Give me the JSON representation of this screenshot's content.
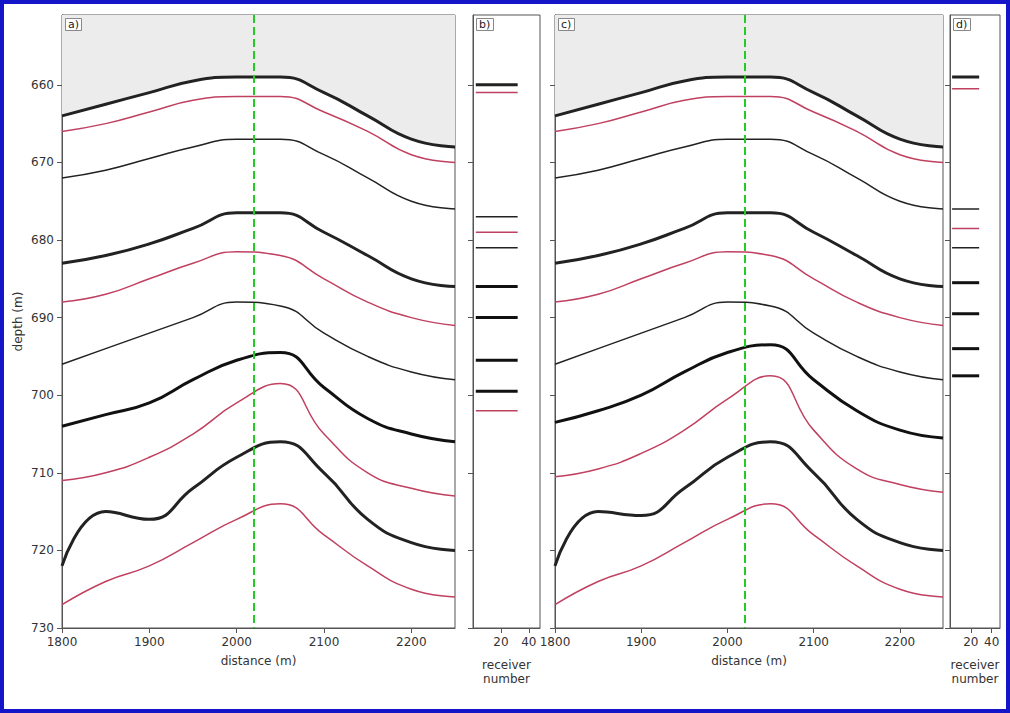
{
  "chart_data": [
    {
      "type": "line",
      "title": "a)",
      "xlabel": "distance (m)",
      "ylabel": "depth (m)",
      "xlim": [
        1800,
        2250
      ],
      "xticks": [
        1800,
        1900,
        2000,
        2100,
        2200
      ],
      "ylim": [
        651,
        730
      ],
      "yticks": [
        660,
        670,
        680,
        690,
        700,
        710,
        720,
        730
      ],
      "grid": false,
      "annotations": [
        {
          "x": 2020,
          "color": "#22cc22",
          "line_style": "dashed"
        }
      ],
      "x": [
        1800,
        1850,
        1900,
        1950,
        2000,
        2050,
        2100,
        2150,
        2200,
        2250
      ],
      "series": [
        {
          "type": "area",
          "color": "#222222",
          "line_style": "bold",
          "values": [
            664,
            662.5,
            661,
            659.5,
            659,
            659,
            661,
            664,
            667,
            668
          ]
        },
        {
          "color": "#c04060",
          "line_style": "solid",
          "values": [
            666,
            665,
            663.5,
            662,
            661.5,
            661.5,
            663.5,
            666,
            669,
            670
          ]
        },
        {
          "color": "#222222",
          "line_style": "solid",
          "values": [
            672,
            671,
            669.5,
            668,
            667,
            667,
            669,
            672,
            675,
            676
          ]
        },
        {
          "color": "#222222",
          "line_style": "bold",
          "values": [
            683,
            682,
            680.5,
            678.5,
            676.5,
            676.5,
            679,
            682,
            685,
            686
          ]
        },
        {
          "color": "#c04060",
          "line_style": "solid",
          "values": [
            688,
            687,
            685,
            683,
            681.5,
            682,
            685,
            688,
            690,
            691
          ]
        },
        {
          "color": "#222222",
          "line_style": "solid",
          "values": [
            696,
            694,
            692,
            690,
            688,
            688.5,
            692,
            695,
            697,
            698
          ]
        },
        {
          "color": "#111111",
          "line_style": "bold",
          "values": [
            704,
            702.5,
            701,
            698,
            695.5,
            694.5,
            699,
            703,
            705,
            706
          ]
        },
        {
          "color": "#c04060",
          "line_style": "solid",
          "values": [
            711,
            710,
            708,
            705,
            701,
            698.5,
            705,
            710,
            712,
            713
          ]
        },
        {
          "color": "#222222",
          "line_style": "bold",
          "values": [
            722,
            715,
            716,
            712,
            708,
            706,
            710,
            716,
            719,
            720
          ]
        },
        {
          "color": "#c04060",
          "line_style": "solid",
          "values": [
            727,
            724,
            722,
            719,
            716,
            714,
            718,
            722,
            725,
            726
          ]
        }
      ]
    },
    {
      "type": "line",
      "title": "b)",
      "xlabel": "receiver number",
      "xlim": [
        0,
        48
      ],
      "xticks": [
        20,
        40
      ],
      "ylim": [
        651,
        730
      ],
      "yticks": [
        660,
        670,
        680,
        690,
        700,
        710,
        720,
        730
      ],
      "grid": false,
      "tick_labels": "x",
      "x": [
        2,
        32
      ],
      "series": [
        {
          "color": "#222222",
          "line_style": "bold",
          "values": [
            660,
            660
          ]
        },
        {
          "color": "#c04060",
          "line_style": "solid",
          "values": [
            661,
            661
          ]
        },
        {
          "color": "#222222",
          "line_style": "solid",
          "values": [
            677,
            677
          ]
        },
        {
          "color": "#c04060",
          "line_style": "solid",
          "values": [
            679,
            679
          ]
        },
        {
          "color": "#222222",
          "line_style": "solid",
          "values": [
            681,
            681
          ]
        },
        {
          "color": "#111111",
          "line_style": "bold",
          "values": [
            686,
            686
          ]
        },
        {
          "color": "#111111",
          "line_style": "bold",
          "values": [
            690,
            690
          ]
        },
        {
          "color": "#111111",
          "line_style": "bold",
          "values": [
            695.5,
            695.5
          ]
        },
        {
          "color": "#111111",
          "line_style": "bold",
          "values": [
            699.5,
            699.5
          ]
        },
        {
          "color": "#c04060",
          "line_style": "solid",
          "values": [
            702,
            702
          ]
        }
      ]
    },
    {
      "type": "line",
      "title": "c)",
      "xlabel": "distance (m)",
      "xlim": [
        1800,
        2250
      ],
      "xticks": [
        1800,
        1900,
        2000,
        2100,
        2200
      ],
      "ylim": [
        651,
        730
      ],
      "yticks": [
        660,
        670,
        680,
        690,
        700,
        710,
        720,
        730
      ],
      "grid": false,
      "tick_labels": "x",
      "annotations": [
        {
          "x": 2020,
          "color": "#22cc22",
          "line_style": "dashed"
        }
      ],
      "x": [
        1800,
        1850,
        1900,
        1950,
        2000,
        2050,
        2100,
        2150,
        2200,
        2250
      ],
      "series": [
        {
          "type": "area",
          "color": "#222222",
          "line_style": "bold",
          "values": [
            664,
            662.5,
            661,
            659.5,
            659,
            659,
            661,
            664,
            667,
            668
          ]
        },
        {
          "color": "#c04060",
          "line_style": "solid",
          "values": [
            666,
            665,
            663.5,
            662,
            661.5,
            661.5,
            663.5,
            666,
            669,
            670
          ]
        },
        {
          "color": "#222222",
          "line_style": "solid",
          "values": [
            672,
            671,
            669.5,
            668,
            667,
            667,
            669,
            672,
            675,
            676
          ]
        },
        {
          "color": "#222222",
          "line_style": "bold",
          "values": [
            683,
            682,
            680.5,
            678.5,
            676.5,
            676.5,
            679,
            682,
            685,
            686
          ]
        },
        {
          "color": "#c04060",
          "line_style": "solid",
          "values": [
            688,
            687,
            685,
            683,
            681.5,
            682,
            685,
            688,
            690,
            691
          ]
        },
        {
          "color": "#222222",
          "line_style": "solid",
          "values": [
            696,
            694,
            692,
            690,
            688,
            688.5,
            692,
            695,
            697,
            698
          ]
        },
        {
          "color": "#111111",
          "line_style": "bold",
          "values": [
            703.5,
            702,
            700,
            697,
            694.5,
            693.5,
            698,
            702,
            704.5,
            705.5
          ]
        },
        {
          "color": "#c04060",
          "line_style": "solid",
          "values": [
            710.5,
            709.5,
            707.5,
            704.5,
            700.5,
            697.5,
            704.5,
            709.5,
            711.5,
            712.5
          ]
        },
        {
          "color": "#222222",
          "line_style": "bold",
          "values": [
            722,
            715,
            715.5,
            712,
            708,
            706,
            710,
            716,
            719,
            720
          ]
        },
        {
          "color": "#c04060",
          "line_style": "solid",
          "values": [
            727,
            724,
            722,
            719,
            716,
            714,
            718,
            722,
            725,
            726
          ]
        }
      ]
    },
    {
      "type": "line",
      "title": "d)",
      "xlabel": "receiver number",
      "xlim": [
        0,
        48
      ],
      "xticks": [
        20,
        40
      ],
      "ylim": [
        651,
        730
      ],
      "yticks": [
        660,
        670,
        680,
        690,
        700,
        710,
        720,
        730
      ],
      "grid": false,
      "tick_labels": "x",
      "x": [
        2,
        28
      ],
      "series": [
        {
          "color": "#222222",
          "line_style": "bold",
          "values": [
            659,
            659
          ]
        },
        {
          "color": "#c04060",
          "line_style": "solid",
          "values": [
            660.5,
            660.5
          ]
        },
        {
          "color": "#222222",
          "line_style": "solid",
          "values": [
            676,
            676
          ]
        },
        {
          "color": "#c04060",
          "line_style": "solid",
          "values": [
            678.5,
            678.5
          ]
        },
        {
          "color": "#222222",
          "line_style": "solid",
          "values": [
            681,
            681
          ]
        },
        {
          "color": "#111111",
          "line_style": "bold",
          "values": [
            685.5,
            685.5
          ]
        },
        {
          "color": "#111111",
          "line_style": "bold",
          "values": [
            689.5,
            689.5
          ]
        },
        {
          "color": "#111111",
          "line_style": "bold",
          "values": [
            694,
            694
          ]
        },
        {
          "color": "#111111",
          "line_style": "bold",
          "values": [
            697.5,
            697.5
          ]
        }
      ]
    }
  ]
}
